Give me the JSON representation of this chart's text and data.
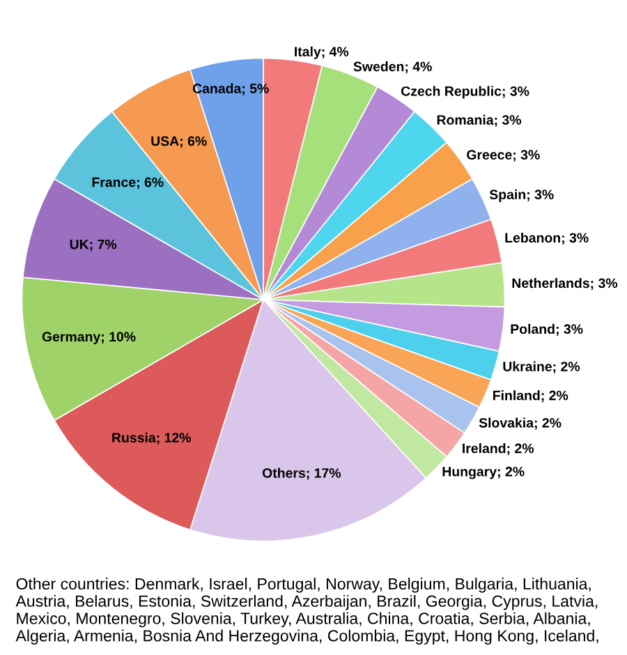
{
  "chart_data": {
    "type": "pie",
    "categories": [
      "Italy",
      "Sweden",
      "Czech Republic",
      "Romania",
      "Greece",
      "Spain",
      "Lebanon",
      "Netherlands",
      "Poland",
      "Ukraine",
      "Finland",
      "Slovakia",
      "Ireland",
      "Hungary",
      "Others",
      "Russia",
      "Germany",
      "UK",
      "France",
      "USA",
      "Canada"
    ],
    "values": [
      4,
      4,
      3,
      3,
      3,
      3,
      3,
      3,
      3,
      2,
      2,
      2,
      2,
      2,
      17,
      12,
      10,
      7,
      6,
      6,
      5
    ],
    "value_labels": [
      "4%",
      "4%",
      "3%",
      "3%",
      "3%",
      "3%",
      "3%",
      "3%",
      "3%",
      "2%",
      "2%",
      "2%",
      "2%",
      "2%",
      "17%",
      "12%",
      "10%",
      "7%",
      "6%",
      "6%",
      "5%"
    ],
    "colors": [
      "#f27a7a",
      "#a6e07a",
      "#b48ad6",
      "#4fd6ef",
      "#f9a04a",
      "#8fb2ef",
      "#f27a7a",
      "#b5e48a",
      "#c49ae0",
      "#4dd0ec",
      "#f9a555",
      "#a9c3ef",
      "#f5a5a5",
      "#c0e8a0",
      "#d9c6ea",
      "#dc5a5a",
      "#9fd36a",
      "#9c70c0",
      "#5cc3dd",
      "#f59a50",
      "#6fa0ea"
    ],
    "annotations": [
      "Other countries: Denmark, Israel, Portugal, Norway, Belgium, Bulgaria, Lithuania, Austria, Belarus, Estonia, Switzerland, Azerbaijan, Brazil, Georgia, Cyprus, Latvia, Mexico, Montenegro, Slovenia, Turkey, Australia, China, Croatia, Serbia, Albania, Algeria, Armenia, Bosnia And Herzegovina, Colombia, Egypt, Hong Kong, Iceland,"
    ]
  }
}
